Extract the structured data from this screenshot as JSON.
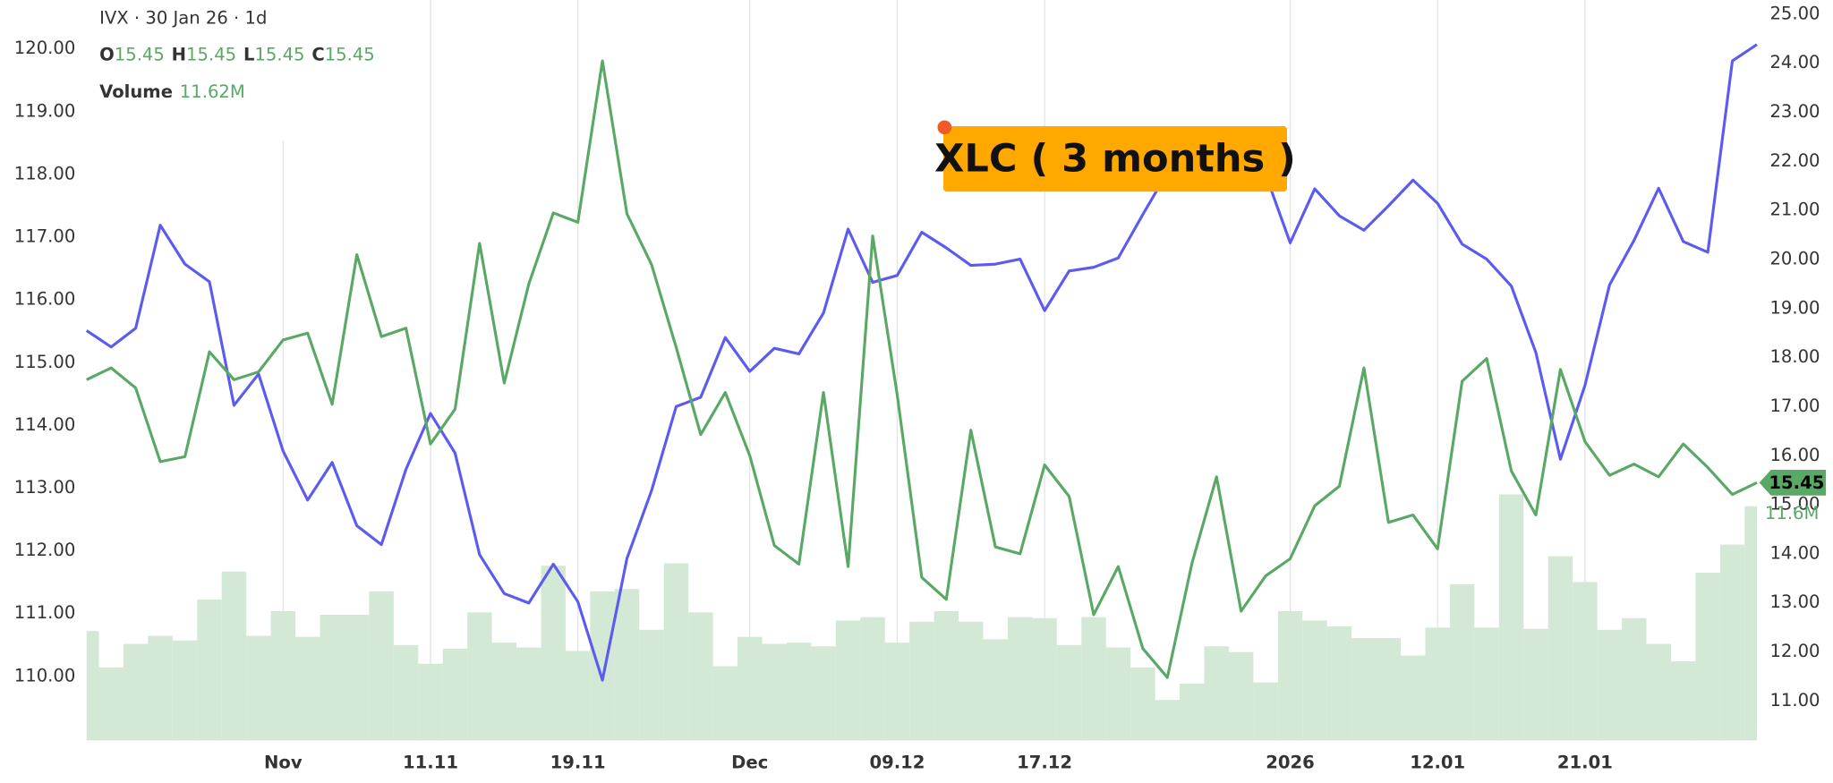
{
  "chart_data": {
    "type": "line",
    "header": {
      "symbol_line": "IVX · 30 Jan 26 · 1d",
      "ohlc": [
        {
          "label": "O",
          "value": 15.45
        },
        {
          "label": "H",
          "value": 15.45
        },
        {
          "label": "L",
          "value": 15.45
        },
        {
          "label": "C",
          "value": 15.45
        }
      ],
      "volume": {
        "label": "Volume",
        "value": "11.62M"
      }
    },
    "annotation": "XLC ( 3 months )",
    "annotation_color": "#ffa800",
    "categories": [
      null,
      null,
      null,
      null,
      null,
      null,
      null,
      null,
      "Nov",
      null,
      null,
      null,
      null,
      null,
      "11.11",
      null,
      null,
      null,
      null,
      null,
      "19.11",
      null,
      null,
      null,
      null,
      null,
      null,
      "Dec",
      null,
      null,
      null,
      null,
      null,
      "09.12",
      null,
      null,
      null,
      null,
      null,
      "17.12",
      null,
      null,
      null,
      null,
      null,
      null,
      null,
      null,
      null,
      "2026",
      null,
      null,
      null,
      null,
      null,
      "12.01",
      null,
      null,
      null,
      null,
      null,
      "21.01",
      null,
      null,
      null,
      null,
      null,
      null,
      null
    ],
    "series": [
      {
        "color": "#5b5bf2",
        "axis": "y",
        "values": [
          115.51,
          115.25,
          115.55,
          117.19,
          116.57,
          116.29,
          114.32,
          114.82,
          113.59,
          112.81,
          113.41,
          112.4,
          112.1,
          113.3,
          114.19,
          113.56,
          111.94,
          111.32,
          111.17,
          111.79,
          111.19,
          109.94,
          111.88,
          112.96,
          114.3,
          114.45,
          115.4,
          114.86,
          115.23,
          115.14,
          115.79,
          117.13,
          116.28,
          116.39,
          117.08,
          116.83,
          116.55,
          116.57,
          116.65,
          115.83,
          116.46,
          116.52,
          116.67,
          117.36,
          118.03,
          118.35,
          118.5,
          118.3,
          118.0,
          116.91,
          117.77,
          117.34,
          117.11,
          117.5,
          117.91,
          117.54,
          116.89,
          116.65,
          116.22,
          115.16,
          113.46,
          114.64,
          116.24,
          116.95,
          117.78,
          116.93,
          116.76,
          119.81,
          120.07
        ]
      },
      {
        "color": "#5aa866",
        "axis": "y2",
        "values": [
          17.55,
          17.79,
          17.38,
          15.88,
          15.98,
          18.12,
          17.55,
          17.71,
          18.36,
          18.5,
          17.05,
          20.1,
          18.43,
          18.6,
          16.24,
          16.95,
          20.33,
          17.48,
          19.5,
          20.95,
          20.76,
          24.05,
          20.93,
          19.9,
          18.21,
          16.43,
          17.29,
          16.0,
          14.17,
          13.79,
          17.29,
          13.74,
          20.48,
          17.24,
          13.52,
          13.07,
          16.52,
          14.14,
          14.0,
          15.81,
          15.17,
          12.76,
          13.74,
          12.07,
          11.48,
          13.81,
          15.57,
          12.83,
          13.55,
          13.9,
          14.98,
          15.38,
          17.79,
          14.64,
          14.79,
          14.1,
          17.52,
          17.98,
          15.69,
          14.79,
          17.76,
          16.29,
          15.6,
          15.83,
          15.57,
          16.24,
          15.76,
          15.21,
          15.45
        ]
      }
    ],
    "volume": {
      "color": "#d3e8d5",
      "label_color": "#5aa866",
      "values": [
        5.41,
        3.6,
        4.77,
        5.17,
        4.94,
        6.98,
        8.37,
        5.17,
        6.4,
        5.12,
        6.22,
        6.22,
        7.38,
        4.71,
        3.78,
        4.53,
        6.34,
        4.83,
        4.59,
        8.66,
        4.42,
        7.38,
        7.5,
        5.47,
        8.78,
        6.34,
        3.66,
        5.12,
        4.77,
        4.83,
        4.65,
        5.93,
        6.1,
        4.83,
        5.87,
        6.4,
        5.87,
        5.0,
        6.1,
        6.05,
        4.71,
        6.1,
        4.59,
        3.6,
        1.98,
        2.79,
        4.65,
        4.36,
        2.85,
        6.4,
        5.93,
        5.64,
        5.06,
        5.06,
        4.19,
        5.58,
        7.73,
        5.58,
        12.21,
        5.52,
        9.13,
        7.85,
        5.47,
        6.05,
        4.77,
        3.9,
        8.31,
        9.71,
        11.62
      ],
      "value_labels": [
        null,
        null,
        null,
        null,
        null,
        null,
        null,
        null,
        null,
        null,
        null,
        null,
        null,
        null,
        null,
        null,
        null,
        null,
        null,
        null,
        null,
        null,
        null,
        null,
        null,
        null,
        null,
        null,
        null,
        null,
        null,
        null,
        null,
        null,
        null,
        null,
        null,
        null,
        null,
        null,
        null,
        null,
        null,
        null,
        null,
        null,
        null,
        null,
        null,
        null,
        null,
        null,
        null,
        null,
        null,
        null,
        null,
        null,
        null,
        null,
        null,
        null,
        null,
        null,
        null,
        null,
        null,
        null,
        "11.6M"
      ]
    },
    "ylim": [
      108.99,
      120.78
    ],
    "yticks": [
      {
        "value": 110,
        "label": "110.00"
      },
      {
        "value": 111,
        "label": "111.00"
      },
      {
        "value": 112,
        "label": "112.00"
      },
      {
        "value": 113,
        "label": "113.00"
      },
      {
        "value": 114,
        "label": "114.00"
      },
      {
        "value": 115,
        "label": "115.00"
      },
      {
        "value": 116,
        "label": "116.00"
      },
      {
        "value": 117,
        "label": "117.00"
      },
      {
        "value": 118,
        "label": "118.00"
      },
      {
        "value": 119,
        "label": "119.00"
      },
      {
        "value": 120,
        "label": "120.00"
      }
    ],
    "y2lim": [
      10.21,
      25.29
    ],
    "y2ticks": [
      {
        "value": 11,
        "label": "11.00"
      },
      {
        "value": 12,
        "label": "12.00"
      },
      {
        "value": 13,
        "label": "13.00"
      },
      {
        "value": 14,
        "label": "14.00"
      },
      {
        "value": 15,
        "label": "15.00"
      },
      {
        "value": 16,
        "label": "16.00"
      },
      {
        "value": 17,
        "label": "17.00"
      },
      {
        "value": 18,
        "label": "18.00"
      },
      {
        "value": 19,
        "label": "19.00"
      },
      {
        "value": 20,
        "label": "20.00"
      },
      {
        "value": 21,
        "label": "21.00"
      },
      {
        "value": 22,
        "label": "22.00"
      },
      {
        "value": 23,
        "label": "23.00"
      },
      {
        "value": 24,
        "label": "24.00"
      },
      {
        "value": 25,
        "label": "25.00"
      }
    ],
    "grid": true
  }
}
